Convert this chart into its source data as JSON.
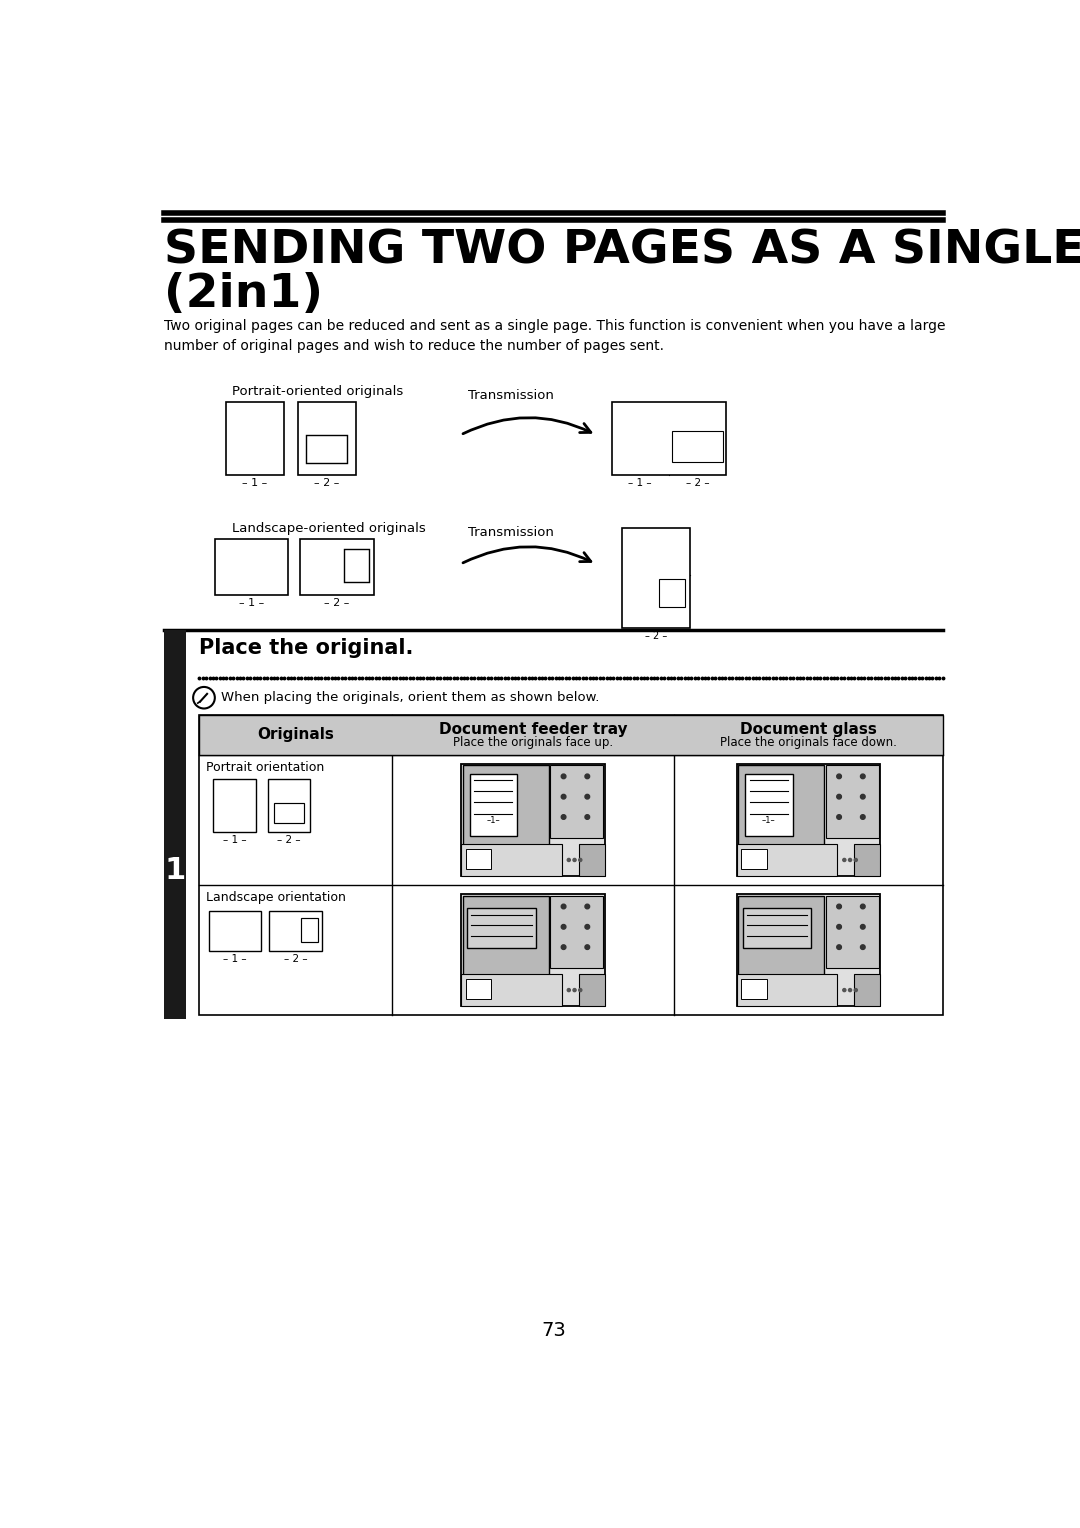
{
  "title_line1": "SENDING TWO PAGES AS A SINGLE PAGE",
  "title_line2": "(2in1)",
  "body_text": "Two original pages can be reduced and sent as a single page. This function is convenient when you have a large\nnumber of original pages and wish to reduce the number of pages sent.",
  "portrait_label": "Portrait-oriented originals",
  "landscape_label": "Landscape-oriented originals",
  "transmission_label": "Transmission",
  "place_original_title": "Place the original.",
  "note_text": "When placing the originals, orient them as shown below.",
  "col1_header": "Originals",
  "col2_header": "Document feeder tray",
  "col2_sub": "Place the originals face up.",
  "col3_header": "Document glass",
  "col3_sub": "Place the originals face down.",
  "row1_label": "Portrait orientation",
  "row2_label": "Landscape orientation",
  "page_number": "73",
  "bg_color": "#ffffff",
  "sidebar_color": "#1a1a1a"
}
